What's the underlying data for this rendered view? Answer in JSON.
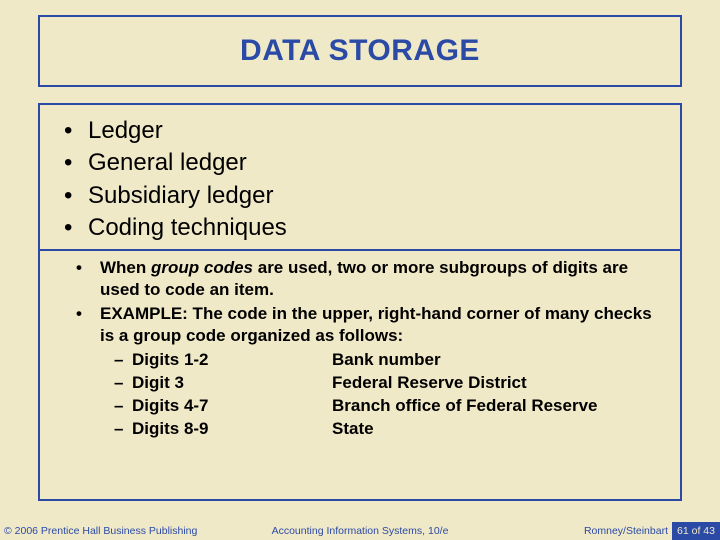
{
  "colors": {
    "background": "#f0e9c8",
    "accent": "#2a4aa6",
    "text": "#000000",
    "page_bg": "#2a4aa6",
    "page_fg": "#f0e9c8"
  },
  "title": "DATA STORAGE",
  "main_items": [
    "Ledger",
    "General ledger",
    "Subsidiary ledger",
    "Coding techniques"
  ],
  "sub": {
    "item1_pre": "When ",
    "item1_em": "group codes",
    "item1_post": " are used, two or more subgroups of digits are used to code an item.",
    "item2": "EXAMPLE:  The code in the upper, right-hand corner of many checks is a group code organized as follows:"
  },
  "details": [
    {
      "a": "Digits 1-2",
      "b": "Bank number"
    },
    {
      "a": "Digit 3",
      "b": "Federal Reserve District"
    },
    {
      "a": "Digits 4-7",
      "b": "Branch office of Federal Reserve"
    },
    {
      "a": "Digits 8-9",
      "b": "State"
    }
  ],
  "footer": {
    "left": "© 2006 Prentice Hall Business Publishing",
    "center": "Accounting Information Systems, 10/e",
    "right": "Romney/Steinbart",
    "page": "61 of 43"
  }
}
